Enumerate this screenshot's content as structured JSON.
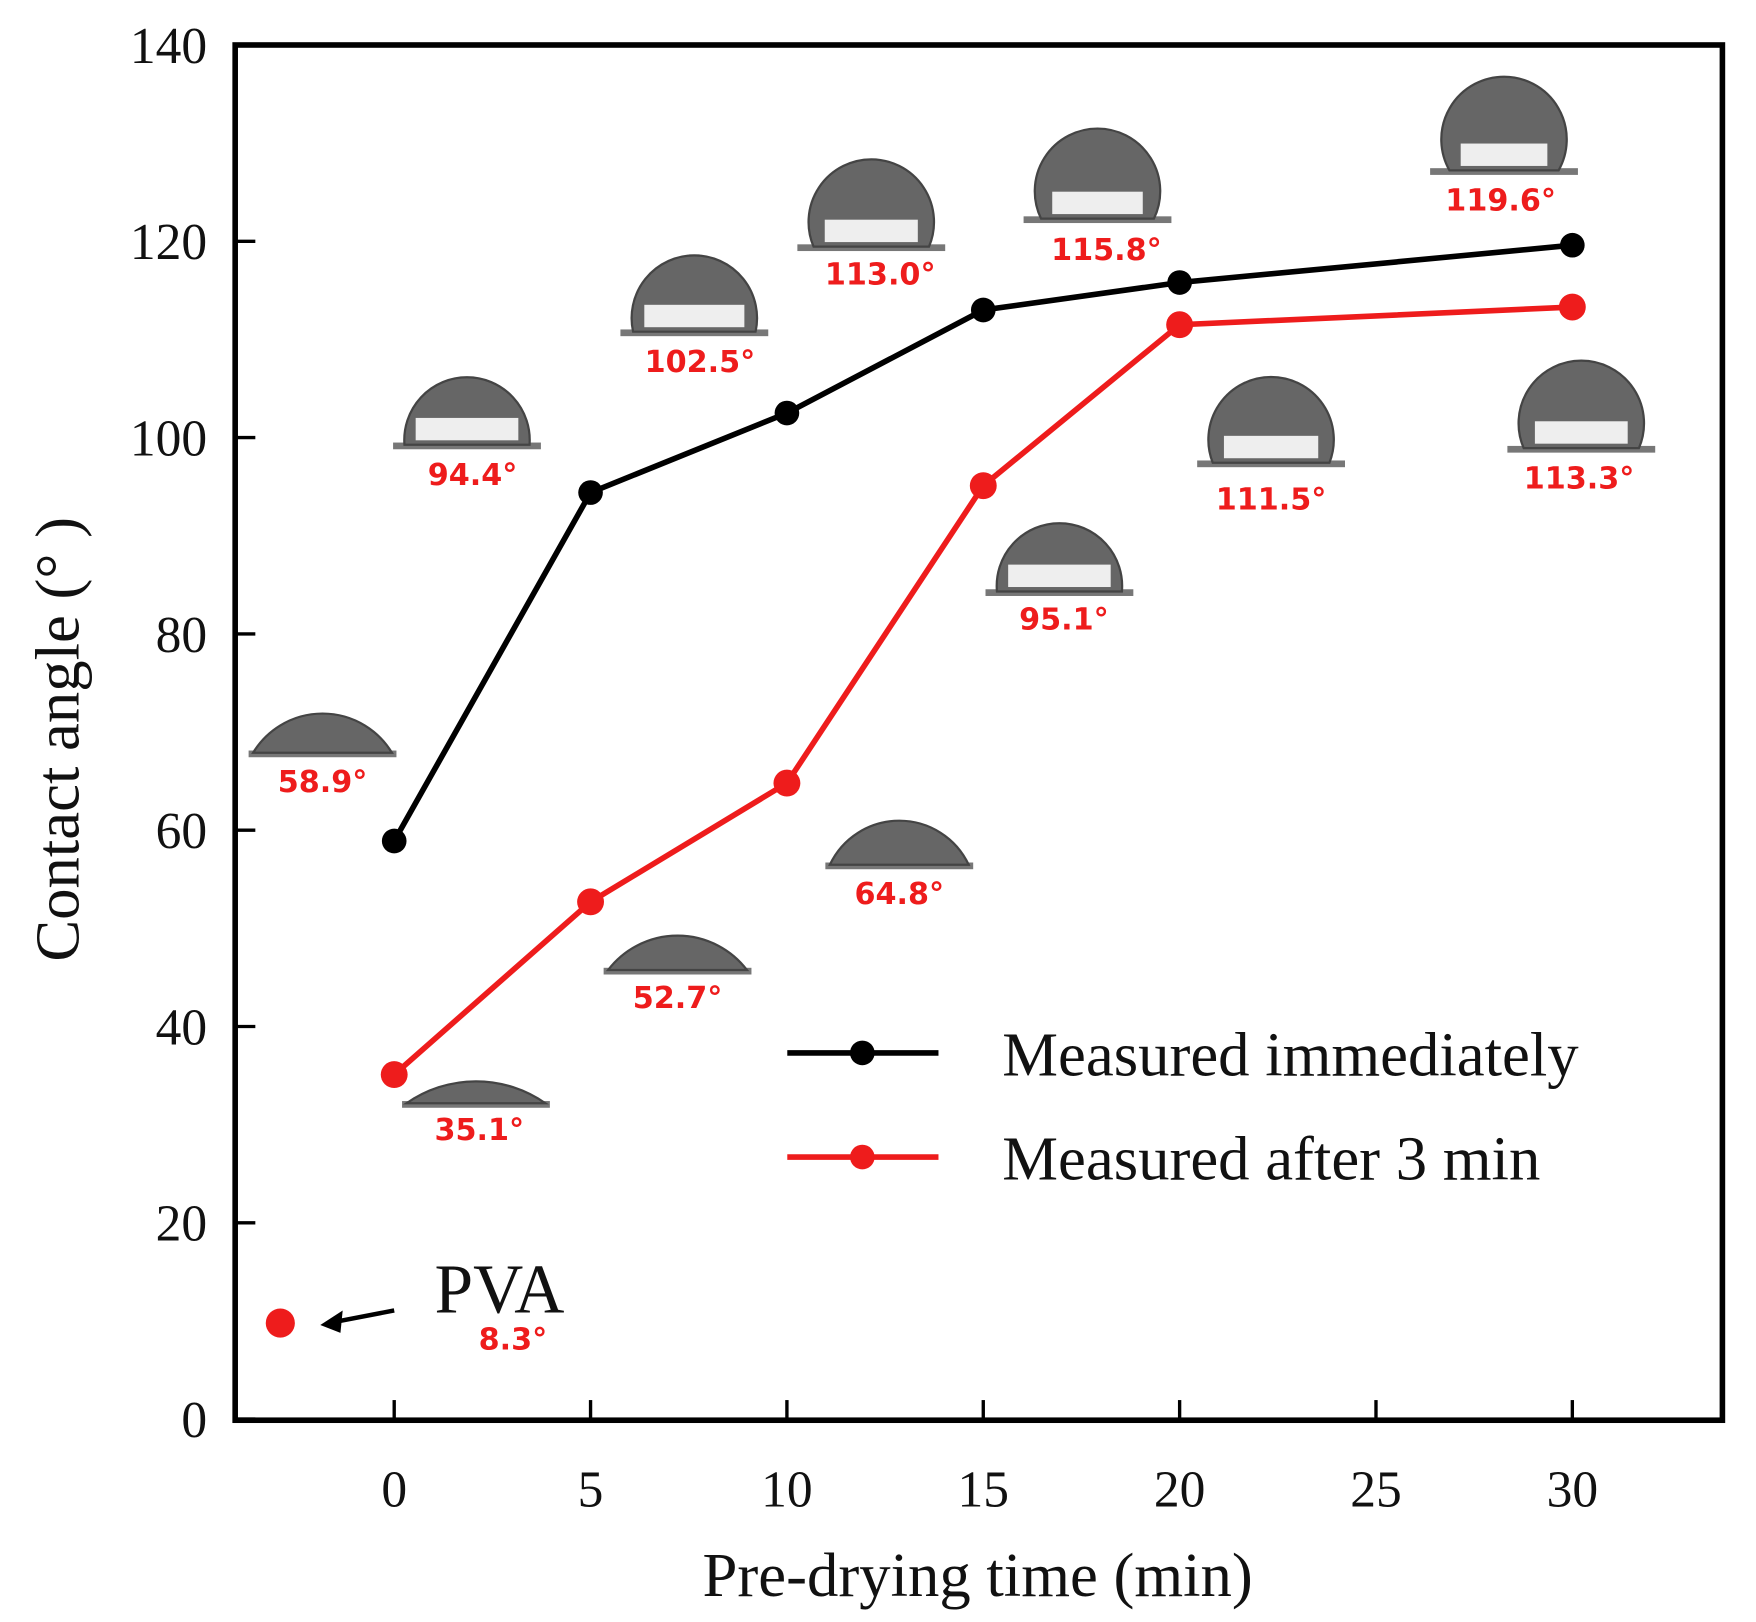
{
  "chart_data": {
    "type": "line",
    "title": "",
    "xlabel": "Pre-drying time (min)",
    "ylabel": "Contact angle (° )",
    "xlim": [
      -4,
      34
    ],
    "ylim": [
      0,
      140
    ],
    "xticks": [
      0,
      5,
      10,
      15,
      20,
      25,
      30
    ],
    "yticks": [
      0,
      20,
      40,
      60,
      80,
      100,
      120,
      140
    ],
    "grid": false,
    "legend_position": "center-right",
    "series": [
      {
        "name": "Measured immediately",
        "color": "#000000",
        "x": [
          0,
          5,
          10,
          15,
          20,
          30
        ],
        "y": [
          58.9,
          94.4,
          102.5,
          113.0,
          115.8,
          119.6
        ],
        "labels": [
          "58.9°",
          "94.4°",
          "102.5°",
          "113.0°",
          "115.8°",
          "119.6°"
        ]
      },
      {
        "name": "Measured after 3 min",
        "color": "#ee1c1c",
        "x": [
          0,
          5,
          10,
          15,
          20,
          30
        ],
        "y": [
          35.1,
          52.7,
          64.8,
          95.1,
          111.5,
          113.3
        ],
        "labels": [
          "35.1°",
          "52.7°",
          "64.8°",
          "95.1°",
          "111.5°",
          "113.3°"
        ]
      }
    ],
    "reference_point": {
      "name": "PVA",
      "x": -2.9,
      "y": 8.3,
      "label": "8.3°",
      "color": "#ee1c1c"
    }
  }
}
